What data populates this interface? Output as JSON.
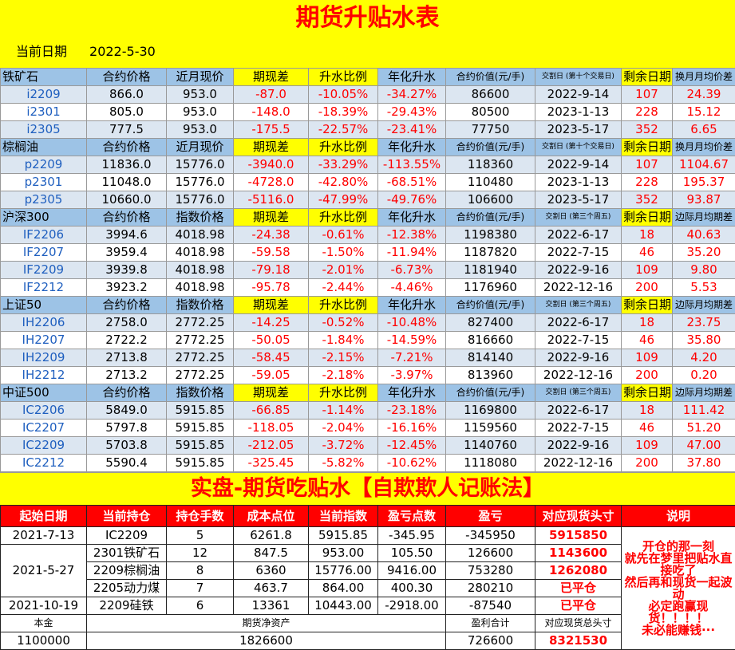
{
  "title": "期货升贴水表",
  "date_label": "当前日期",
  "date": "2022-5-30",
  "upper": {
    "groups": [
      {
        "header": [
          "铁矿石",
          "合约价格",
          "近月现价",
          "期现差",
          "升水比例",
          "年化升水",
          "合约价值(元/手)",
          "交割日 (第十个交易日)",
          "剩余日期",
          "换月月均价差"
        ],
        "rows": [
          [
            "i2209",
            "866.0",
            "953.0",
            "-87.0",
            "-10.05%",
            "-34.27%",
            "86600",
            "2022-9-14",
            "107",
            "24.39"
          ],
          [
            "i2301",
            "805.0",
            "953.0",
            "-148.0",
            "-18.39%",
            "-29.43%",
            "80500",
            "2023-1-13",
            "228",
            "15.12"
          ],
          [
            "i2305",
            "777.5",
            "953.0",
            "-175.5",
            "-22.57%",
            "-23.41%",
            "77750",
            "2023-5-17",
            "352",
            "6.65"
          ]
        ]
      },
      {
        "header": [
          "棕榈油",
          "合约价格",
          "近月现价",
          "期现差",
          "升水比例",
          "年化升水",
          "合约价值(元/手)",
          "交割日 (第十个交易日)",
          "剩余日期",
          "换月月均价差"
        ],
        "rows": [
          [
            "p2209",
            "11836.0",
            "15776.0",
            "-3940.0",
            "-33.29%",
            "-113.55%",
            "118360",
            "2022-9-14",
            "107",
            "1104.67"
          ],
          [
            "p2301",
            "11048.0",
            "15776.0",
            "-4728.0",
            "-42.80%",
            "-68.51%",
            "110480",
            "2023-1-13",
            "228",
            "195.37"
          ],
          [
            "p2305",
            "10660.0",
            "15776.0",
            "-5116.0",
            "-47.99%",
            "-49.76%",
            "106600",
            "2023-5-17",
            "352",
            "93.87"
          ]
        ]
      },
      {
        "header": [
          "沪深300",
          "合约价格",
          "指数价格",
          "期现差",
          "升水比例",
          "年化升水",
          "合约价值(元/手)",
          "交割日 (第三个周五)",
          "剩余日期",
          "边际月均期差"
        ],
        "rows": [
          [
            "IF2206",
            "3994.6",
            "4018.98",
            "-24.38",
            "-0.61%",
            "-12.38%",
            "1198380",
            "2022-6-17",
            "18",
            "40.63"
          ],
          [
            "IF2207",
            "3959.4",
            "4018.98",
            "-59.58",
            "-1.50%",
            "-11.94%",
            "1187820",
            "2022-7-15",
            "46",
            "35.20"
          ],
          [
            "IF2209",
            "3939.8",
            "4018.98",
            "-79.18",
            "-2.01%",
            "-6.73%",
            "1181940",
            "2022-9-16",
            "109",
            "9.80"
          ],
          [
            "IF2212",
            "3923.2",
            "4018.98",
            "-95.78",
            "-2.44%",
            "-4.46%",
            "1176960",
            "2022-12-16",
            "200",
            "5.53"
          ]
        ]
      },
      {
        "header": [
          "上证50",
          "合约价格",
          "指数价格",
          "期现差",
          "升水比例",
          "年化升水",
          "合约价值(元/手)",
          "交割日 (第三个周五)",
          "剩余日期",
          "边际月均期差"
        ],
        "rows": [
          [
            "IH2206",
            "2758.0",
            "2772.25",
            "-14.25",
            "-0.52%",
            "-10.48%",
            "827400",
            "2022-6-17",
            "18",
            "23.75"
          ],
          [
            "IH2207",
            "2722.2",
            "2772.25",
            "-50.05",
            "-1.84%",
            "-14.59%",
            "816660",
            "2022-7-15",
            "46",
            "35.80"
          ],
          [
            "IH2209",
            "2713.8",
            "2772.25",
            "-58.45",
            "-2.15%",
            "-7.21%",
            "814140",
            "2022-9-16",
            "109",
            "4.20"
          ],
          [
            "IH2212",
            "2713.2",
            "2772.25",
            "-59.05",
            "-2.18%",
            "-3.97%",
            "813960",
            "2022-12-16",
            "200",
            "0.20"
          ]
        ]
      },
      {
        "header": [
          "中证500",
          "合约价格",
          "指数价格",
          "期现差",
          "升水比例",
          "年化升水",
          "合约价值(元/手)",
          "交割日 (第三个周五)",
          "剩余日期",
          "边际月均期差"
        ],
        "rows": [
          [
            "IC2206",
            "5849.0",
            "5915.85",
            "-66.85",
            "-1.14%",
            "-23.18%",
            "1169800",
            "2022-6-17",
            "18",
            "111.42"
          ],
          [
            "IC2207",
            "5797.8",
            "5915.85",
            "-118.05",
            "-2.04%",
            "-16.16%",
            "1159560",
            "2022-7-15",
            "46",
            "51.20"
          ],
          [
            "IC2209",
            "5703.8",
            "5915.85",
            "-212.05",
            "-3.72%",
            "-12.45%",
            "1140760",
            "2022-9-16",
            "109",
            "47.00"
          ],
          [
            "IC2212",
            "5590.4",
            "5915.85",
            "-325.45",
            "-5.82%",
            "-10.62%",
            "1118080",
            "2022-12-16",
            "200",
            "37.80"
          ]
        ]
      }
    ]
  },
  "section_title": "实盘-期货吃贴水【自欺欺人记账法】",
  "lower": {
    "header": [
      "起始日期",
      "当前持仓",
      "持仓手数",
      "成本点位",
      "当前指数",
      "盈亏点数",
      "盈亏",
      "对应现货头寸",
      "说明"
    ],
    "rows": [
      [
        "2021-7-13",
        "IC2209",
        "5",
        "6261.8",
        "5915.85",
        "-345.95",
        "-345950",
        "5915850"
      ],
      [
        "2021-5-27",
        "2301铁矿石",
        "12",
        "847.5",
        "953.00",
        "105.50",
        "126600",
        "1143600"
      ],
      [
        "2209棕榈油",
        "8",
        "6360",
        "15776.00",
        "9416.00",
        "753280",
        "1262080"
      ],
      [
        "2205动力煤",
        "7",
        "463.7",
        "864.00",
        "400.30",
        "280210",
        "已平仓"
      ],
      [
        "2021-10-19",
        "2209硅铁",
        "6",
        "13361",
        "10443.00",
        "-2918.00",
        "-87540",
        "已平仓"
      ],
      [
        "本金",
        "期货净资产",
        "盈利合计",
        "对应现货总头寸"
      ],
      [
        "1100000",
        "1826600",
        "726600",
        "8321530"
      ]
    ],
    "note": [
      "开仓的那一刻",
      "就先在梦里把贴水直接吃了",
      "然后再和现货一起波动",
      "必定跑赢现货！！！！",
      "未必能赚钱···"
    ]
  }
}
